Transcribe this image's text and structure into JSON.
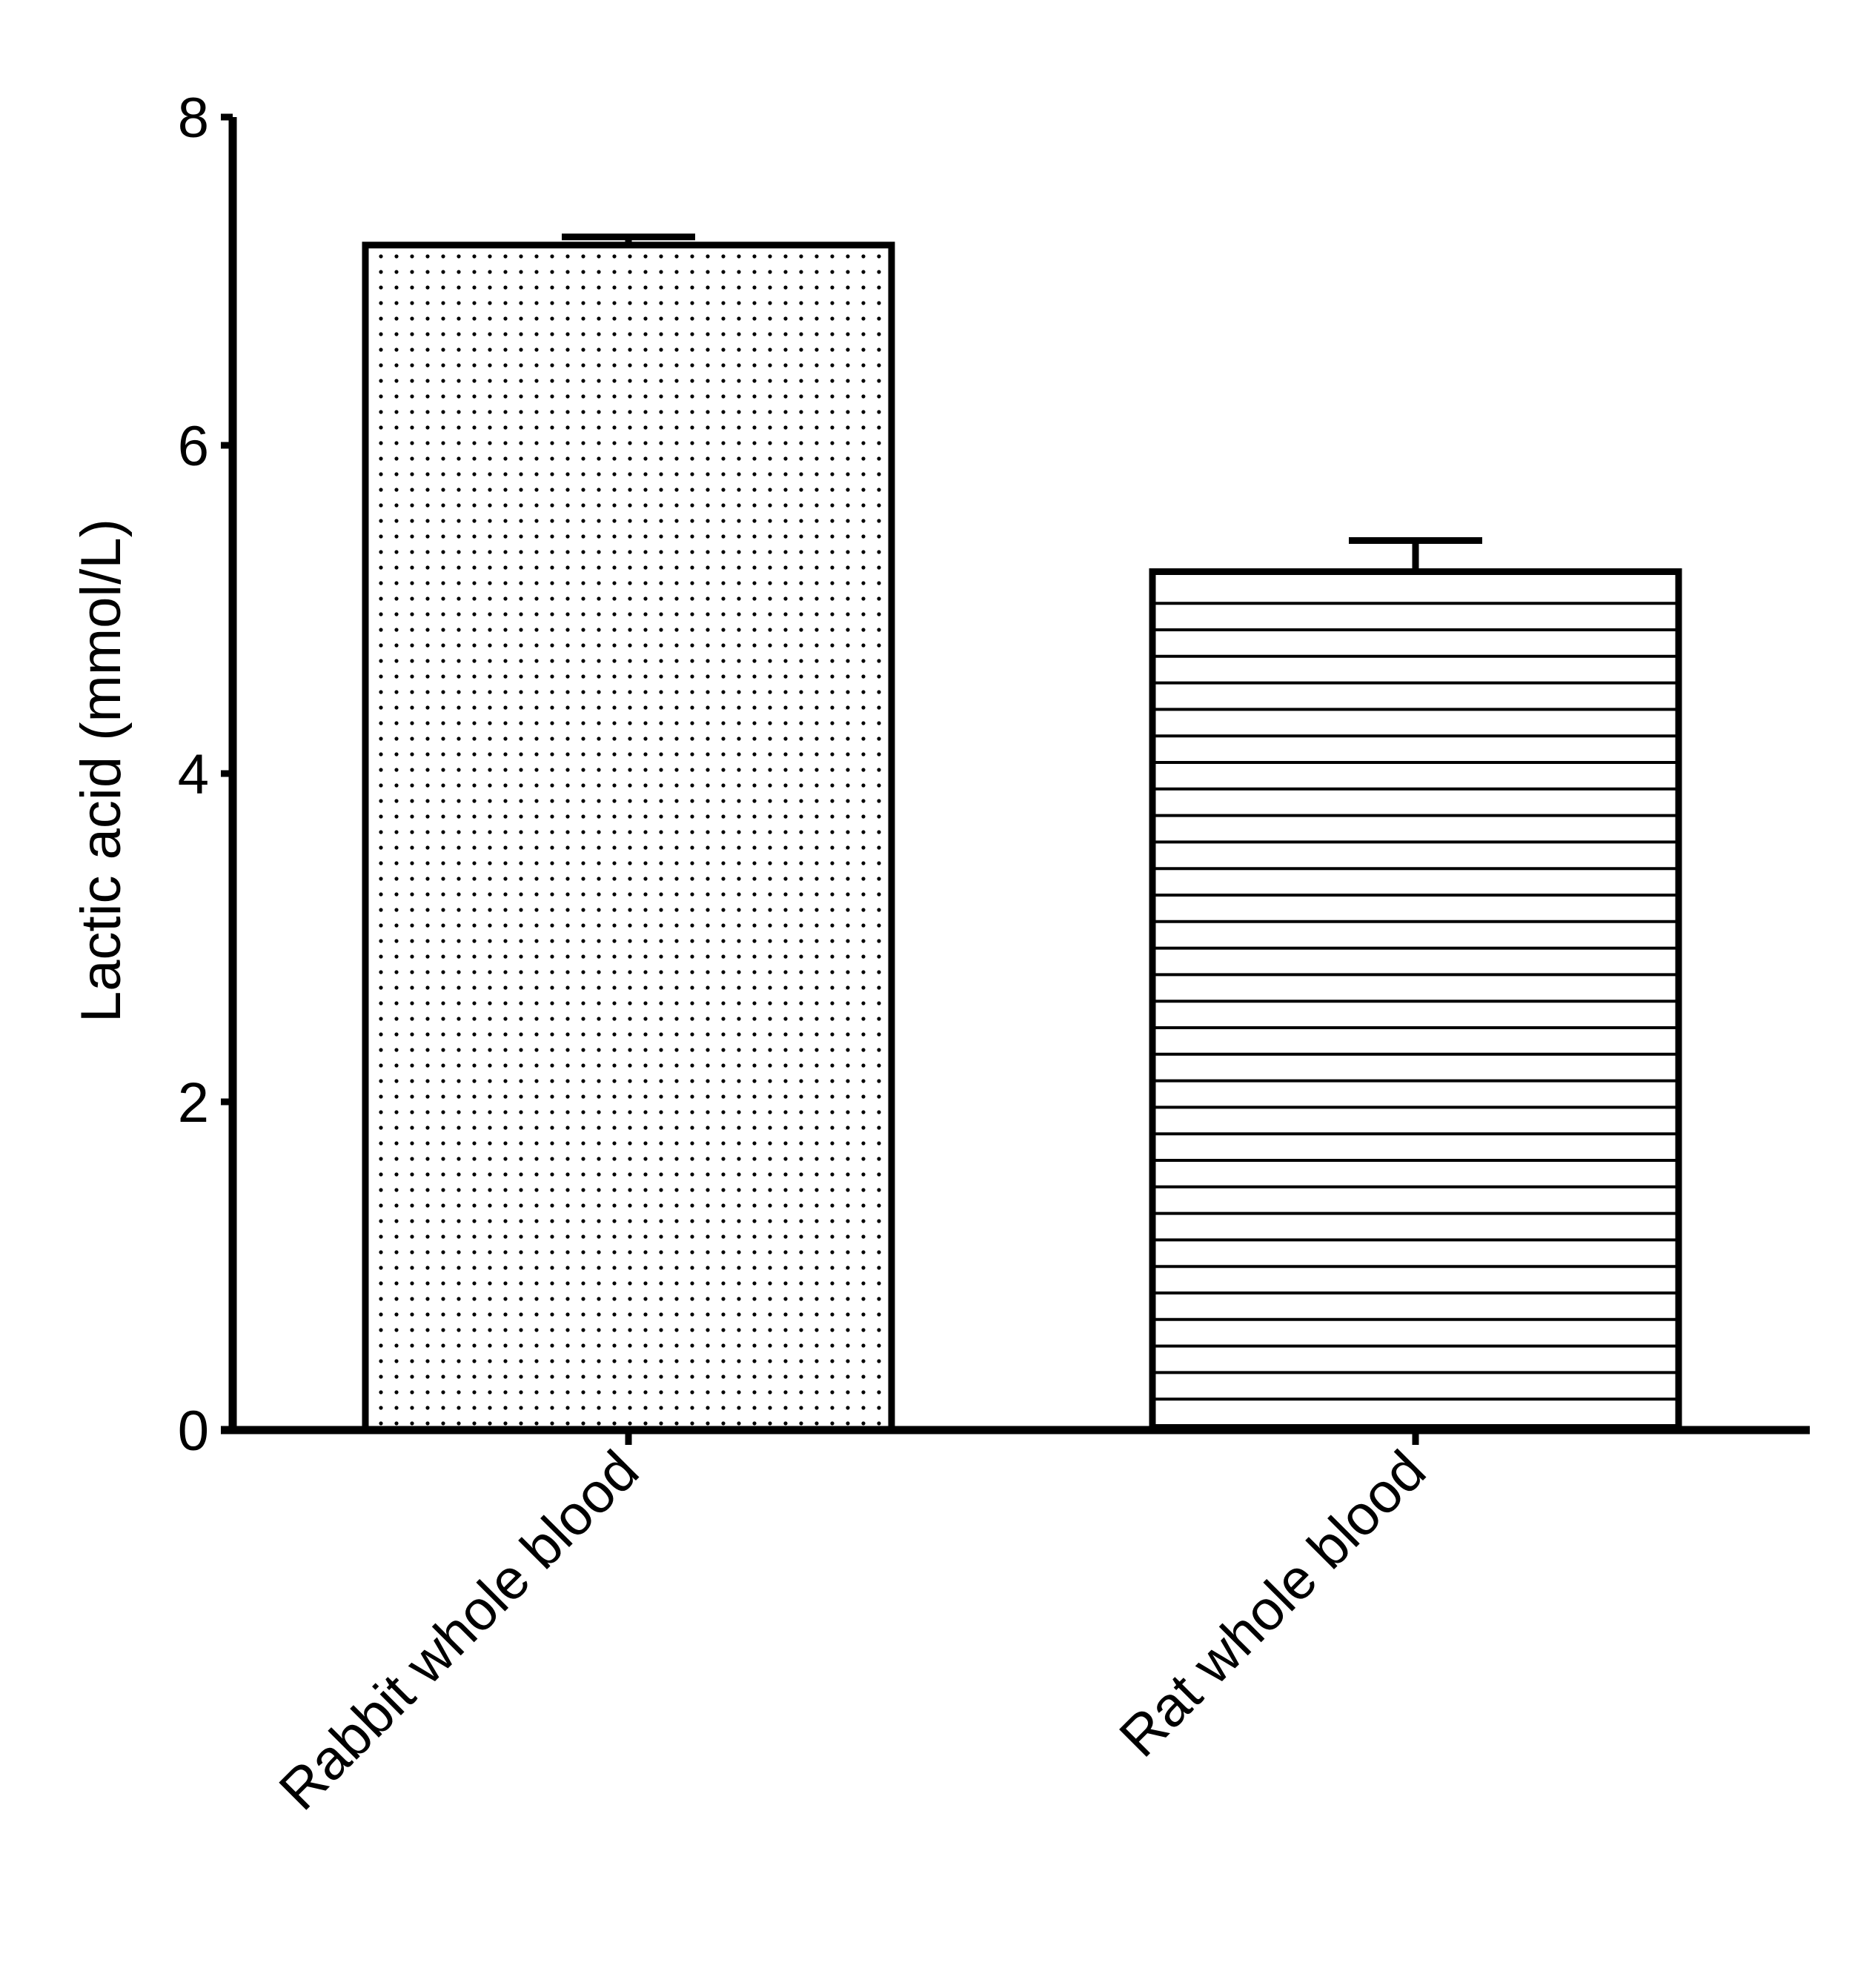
{
  "chart_data": {
    "type": "bar",
    "categories": [
      "Rabbit whole blood",
      "Rat whole blood"
    ],
    "values": [
      7.22,
      5.23
    ],
    "error_upper": [
      7.27,
      5.42
    ],
    "fill_patterns": [
      "dots",
      "horizontal-lines"
    ],
    "xlabel": "",
    "ylabel": "Lactic acid (mmol/L)",
    "ylim": [
      0,
      8
    ],
    "yticks": [
      "0",
      "2",
      "4",
      "6",
      "8"
    ],
    "grid": false,
    "legend": "none",
    "colors": {
      "ink": "#000000",
      "background": "#ffffff"
    }
  }
}
